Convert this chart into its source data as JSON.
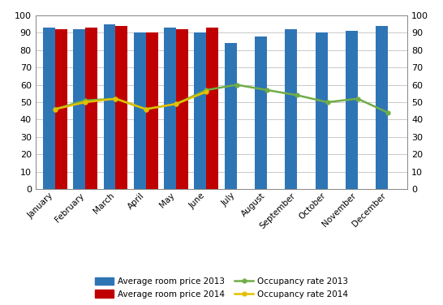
{
  "months": [
    "January",
    "February",
    "March",
    "April",
    "May",
    "June",
    "July",
    "August",
    "September",
    "October",
    "November",
    "December"
  ],
  "price_2013": [
    93,
    92,
    95,
    90,
    93,
    90,
    84,
    88,
    92,
    90,
    91,
    94
  ],
  "price_2014": [
    92,
    93,
    94,
    90,
    92,
    93,
    null,
    null,
    null,
    null,
    null,
    null
  ],
  "occupancy_2013": [
    46,
    51,
    52,
    46,
    49,
    57,
    60,
    57,
    54,
    50,
    52,
    44
  ],
  "occupancy_2014": [
    46,
    50,
    52,
    46,
    49,
    56,
    null,
    null,
    null,
    null,
    null,
    null
  ],
  "color_2013": "#2E75B6",
  "color_2014": "#C00000",
  "occ_color_2013": "#70AD47",
  "occ_color_2014": "#E2C000",
  "ylim": [
    0,
    100
  ],
  "yticks": [
    0,
    10,
    20,
    30,
    40,
    50,
    60,
    70,
    80,
    90,
    100
  ],
  "bar_width": 0.4,
  "legend_labels": [
    "Average room price 2013",
    "Average room price 2014",
    "Occupancy rate 2013",
    "Occupancy rate 2014"
  ],
  "figsize": [
    5.46,
    3.76
  ],
  "dpi": 100
}
